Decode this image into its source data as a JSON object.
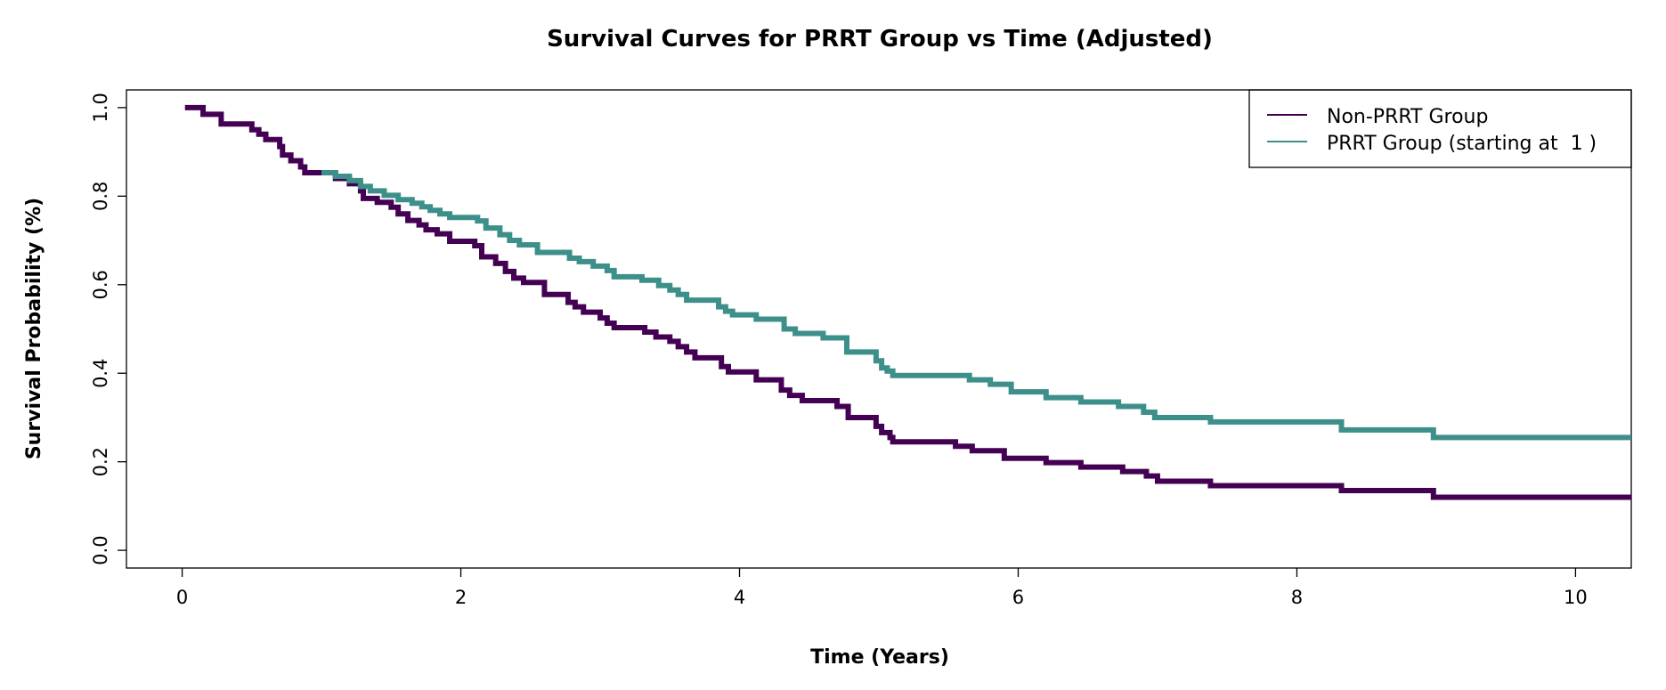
{
  "chart_data": {
    "type": "line",
    "title": "Survival Curves for PRRT Group vs Time (Adjusted)",
    "xlabel": "Time (Years)",
    "ylabel": "Survival Probability (%)",
    "xlim": [
      -0.4,
      10.4
    ],
    "ylim": [
      -0.04,
      1.04
    ],
    "xticks": [
      0,
      2,
      4,
      6,
      8,
      10
    ],
    "yticks": [
      0.0,
      0.2,
      0.4,
      0.6,
      0.8,
      1.0
    ],
    "xtick_labels": [
      "0",
      "2",
      "4",
      "6",
      "8",
      "10"
    ],
    "ytick_labels": [
      "0.0",
      "0.2",
      "0.4",
      "0.6",
      "0.8",
      "1.0"
    ],
    "legend_position": "top-right",
    "grid": false,
    "series": [
      {
        "name": "Non-PRRT Group",
        "color": "#440154",
        "step": true,
        "x": [
          0.02,
          0.15,
          0.28,
          0.5,
          0.55,
          0.6,
          0.7,
          0.72,
          0.78,
          0.85,
          0.88,
          1.1,
          1.2,
          1.28,
          1.3,
          1.4,
          1.5,
          1.55,
          1.62,
          1.7,
          1.75,
          1.83,
          1.92,
          2.1,
          2.15,
          2.25,
          2.32,
          2.38,
          2.45,
          2.6,
          2.77,
          2.82,
          2.88,
          3.0,
          3.05,
          3.1,
          3.32,
          3.4,
          3.5,
          3.56,
          3.62,
          3.68,
          3.87,
          3.92,
          4.12,
          4.3,
          4.36,
          4.45,
          4.7,
          4.78,
          4.98,
          5.02,
          5.08,
          5.1,
          5.55,
          5.67,
          5.9,
          6.2,
          6.45,
          6.75,
          6.92,
          7.0,
          7.38,
          8.32,
          8.98
        ],
        "y": [
          1.0,
          0.985,
          0.963,
          0.95,
          0.94,
          0.928,
          0.912,
          0.893,
          0.88,
          0.866,
          0.853,
          0.84,
          0.828,
          0.812,
          0.795,
          0.786,
          0.775,
          0.76,
          0.745,
          0.735,
          0.724,
          0.715,
          0.698,
          0.688,
          0.663,
          0.648,
          0.63,
          0.615,
          0.605,
          0.578,
          0.56,
          0.55,
          0.538,
          0.525,
          0.513,
          0.503,
          0.493,
          0.482,
          0.472,
          0.46,
          0.448,
          0.435,
          0.415,
          0.403,
          0.385,
          0.362,
          0.35,
          0.338,
          0.325,
          0.3,
          0.28,
          0.266,
          0.255,
          0.245,
          0.235,
          0.225,
          0.208,
          0.198,
          0.188,
          0.178,
          0.168,
          0.156,
          0.146,
          0.135,
          0.12
        ]
      },
      {
        "name": "PRRT Group (starting at  1 )",
        "color": "#3d8f8a",
        "step": true,
        "x": [
          1.0,
          1.1,
          1.2,
          1.28,
          1.35,
          1.45,
          1.55,
          1.65,
          1.72,
          1.78,
          1.85,
          1.92,
          2.12,
          2.18,
          2.28,
          2.35,
          2.42,
          2.55,
          2.78,
          2.85,
          2.95,
          3.05,
          3.1,
          3.3,
          3.42,
          3.5,
          3.56,
          3.62,
          3.85,
          3.9,
          3.95,
          4.12,
          4.32,
          4.4,
          4.6,
          4.77,
          4.98,
          5.02,
          5.06,
          5.1,
          5.65,
          5.8,
          5.95,
          6.2,
          6.45,
          6.72,
          6.9,
          6.98,
          7.38,
          8.32,
          8.98
        ],
        "y": [
          0.853,
          0.845,
          0.835,
          0.822,
          0.812,
          0.802,
          0.792,
          0.784,
          0.776,
          0.768,
          0.76,
          0.752,
          0.744,
          0.728,
          0.713,
          0.7,
          0.69,
          0.673,
          0.66,
          0.652,
          0.642,
          0.632,
          0.618,
          0.61,
          0.598,
          0.588,
          0.578,
          0.565,
          0.55,
          0.54,
          0.532,
          0.522,
          0.5,
          0.49,
          0.48,
          0.448,
          0.428,
          0.412,
          0.405,
          0.395,
          0.385,
          0.375,
          0.358,
          0.345,
          0.335,
          0.325,
          0.312,
          0.3,
          0.29,
          0.272,
          0.255
        ]
      }
    ]
  }
}
